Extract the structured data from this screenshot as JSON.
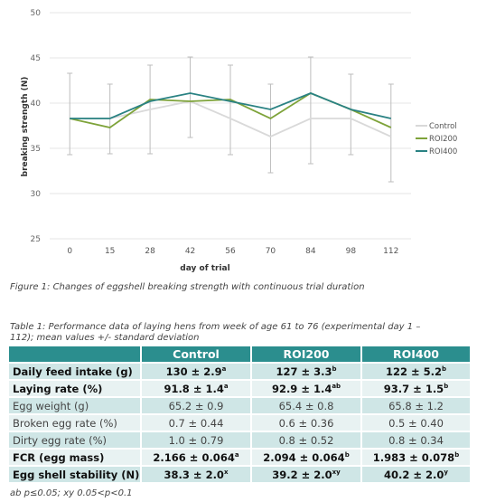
{
  "chart_data": {
    "type": "line",
    "xlabel": "day of trial",
    "ylabel": "breaking strength (N)",
    "categories": [
      "0",
      "15",
      "28",
      "42",
      "56",
      "70",
      "84",
      "98",
      "112"
    ],
    "ylim": [
      25,
      50
    ],
    "yticks": [
      "25",
      "30",
      "35",
      "40",
      "45",
      "50"
    ],
    "grid": true,
    "legend_position": "right",
    "series": [
      {
        "name": "Control",
        "color": "#d9d9d9",
        "values": [
          38.3,
          38.3,
          39.3,
          40.2,
          38.3,
          36.3,
          38.3,
          38.3,
          36.3
        ]
      },
      {
        "name": "ROI200",
        "color": "#7ea33a",
        "values": [
          38.3,
          37.3,
          40.4,
          40.2,
          40.4,
          38.3,
          41.1,
          39.3,
          37.3
        ]
      },
      {
        "name": "ROI400",
        "color": "#2a8283",
        "values": [
          38.3,
          38.3,
          40.2,
          41.1,
          40.2,
          39.3,
          41.1,
          39.3,
          38.3
        ]
      }
    ],
    "error_bars": {
      "lower": [
        34.3,
        34.4,
        34.4,
        36.2,
        34.3,
        32.3,
        33.3,
        34.3,
        31.3
      ],
      "upper": [
        43.3,
        42.1,
        44.2,
        45.1,
        44.2,
        42.1,
        45.1,
        43.2,
        42.1
      ]
    }
  },
  "figure_caption": "Figure 1: Changes of eggshell breaking strength with continuous trial duration",
  "table_caption": "Table 1: Performance data of laying hens from week of age 61 to 76 (experimental day 1 – 112); mean values +/- standard deviation",
  "table": {
    "headers": [
      "",
      "Control",
      "ROI200",
      "ROI400"
    ],
    "rows": [
      {
        "label": "Daily feed intake (g)",
        "bold": true,
        "cells": [
          {
            "v": "130 ± 2.9",
            "s": "a"
          },
          {
            "v": "127 ± 3.3",
            "s": "b"
          },
          {
            "v": "122 ± 5.2",
            "s": "b"
          }
        ]
      },
      {
        "label": "Laying rate (%)",
        "bold": true,
        "cells": [
          {
            "v": "91.8 ± 1.4",
            "s": "a"
          },
          {
            "v": "92.9 ± 1.4",
            "s": "ab"
          },
          {
            "v": "93.7 ± 1.5",
            "s": "b"
          }
        ]
      },
      {
        "label": "Egg weight (g)",
        "bold": false,
        "cells": [
          {
            "v": "65.2 ± 0.9",
            "s": ""
          },
          {
            "v": "65.4 ± 0.8",
            "s": ""
          },
          {
            "v": "65.8 ± 1.2",
            "s": ""
          }
        ]
      },
      {
        "label": "Broken egg rate (%)",
        "bold": false,
        "cells": [
          {
            "v": "0.7 ± 0.44",
            "s": ""
          },
          {
            "v": "0.6 ± 0.36",
            "s": ""
          },
          {
            "v": "0.5 ± 0.40",
            "s": ""
          }
        ]
      },
      {
        "label": "Dirty egg rate (%)",
        "bold": false,
        "cells": [
          {
            "v": "1.0 ± 0.79",
            "s": ""
          },
          {
            "v": "0.8 ± 0.52",
            "s": ""
          },
          {
            "v": "0.8 ± 0.34",
            "s": ""
          }
        ]
      },
      {
        "label": "FCR (egg mass)",
        "bold": true,
        "cells": [
          {
            "v": "2.166 ± 0.064",
            "s": "a"
          },
          {
            "v": "2.094 ± 0.064",
            "s": "b"
          },
          {
            "v": "1.983 ± 0.078",
            "s": "b"
          }
        ]
      },
      {
        "label": "Egg shell stability (N)",
        "bold": true,
        "cells": [
          {
            "v": "38.3 ± 2.0",
            "s": "x"
          },
          {
            "v": "39.2 ± 2.0",
            "s": "xy"
          },
          {
            "v": "40.2 ± 2.0",
            "s": "y"
          }
        ]
      }
    ]
  },
  "footnote": "ab p≤0.05; xy 0.05<p<0.1",
  "colors": {
    "header_bg": "#2b8e8e",
    "row_dark": "#cfe6e6",
    "row_light": "#e8f2f2"
  }
}
